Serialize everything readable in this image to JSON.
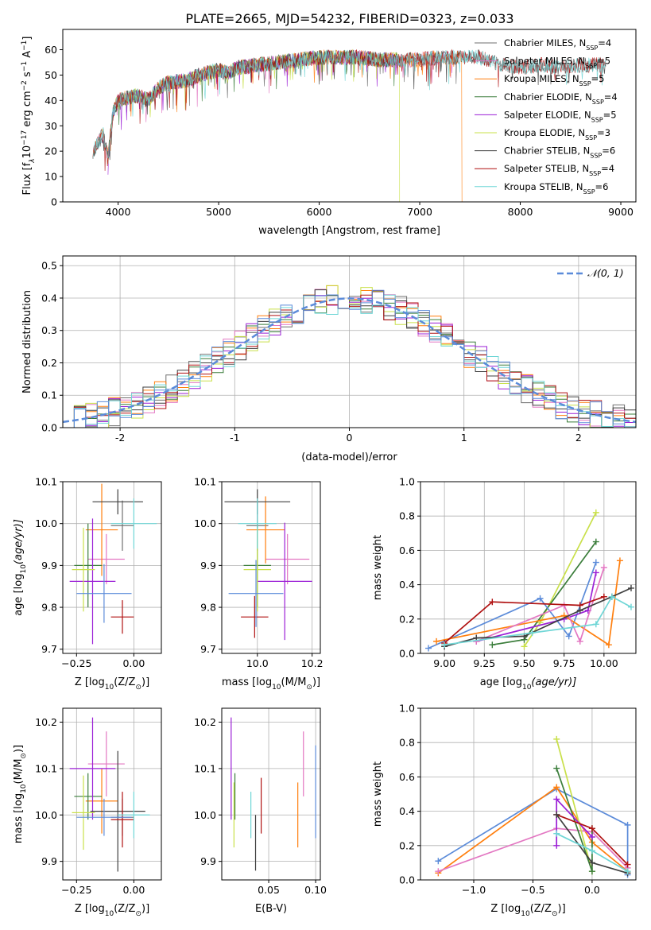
{
  "figure": {
    "title": "PLATE=2665, MJD=54232, FIBERID=0323, z=0.033"
  },
  "colors": {
    "Chabrier MILES": "#6f6f6f",
    "Salpeter MILES": "#e377c2",
    "Kroupa MILES": "#ff7f0e",
    "Chabrier ELODIE": "#3a7d3a",
    "Salpeter ELODIE": "#9b1fd6",
    "Kroupa ELODIE": "#c9e04a",
    "Chabrier STELIB": "#3f3f3f",
    "Salpeter STELIB": "#b01111",
    "Kroupa STELIB": "#6fd6d6",
    "blue_model": "#5b8bd9",
    "grid": "#b0b0b0"
  },
  "chart_data": [
    {
      "id": "spectrum",
      "type": "line",
      "xlabel": "wavelength [Angstrom, rest frame]",
      "ylabel_parts": [
        "Flux [f",
        "λ",
        "10",
        "−17",
        " erg cm",
        "−2",
        " s",
        "−1",
        " A",
        "−1",
        "]"
      ],
      "xlim": [
        3450,
        9150
      ],
      "ylim": [
        0,
        68
      ],
      "xticks": [
        4000,
        5000,
        6000,
        7000,
        8000,
        9000
      ],
      "yticks": [
        0,
        10,
        20,
        30,
        40,
        50,
        60
      ],
      "grid": false,
      "legend_position": "top-right",
      "legend": [
        {
          "label": "Chabrier MILES, N",
          "sub": "SSP",
          "tail": "=4"
        },
        {
          "label": "Salpeter MILES, N",
          "sub": "SSP",
          "tail": "=5"
        },
        {
          "label": "Kroupa MILES, N",
          "sub": "SSP",
          "tail": "=5"
        },
        {
          "label": "Chabrier ELODIE, N",
          "sub": "SSP",
          "tail": "=4"
        },
        {
          "label": "Salpeter ELODIE, N",
          "sub": "SSP",
          "tail": "=5"
        },
        {
          "label": "Kroupa ELODIE, N",
          "sub": "SSP",
          "tail": "=3"
        },
        {
          "label": "Chabrier STELIB, N",
          "sub": "SSP",
          "tail": "=6"
        },
        {
          "label": "Salpeter STELIB, N",
          "sub": "SSP",
          "tail": "=4"
        },
        {
          "label": "Kroupa STELIB, N",
          "sub": "SSP",
          "tail": "=6"
        }
      ],
      "continuum": [
        [
          3750,
          20
        ],
        [
          3800,
          23
        ],
        [
          3850,
          27
        ],
        [
          3900,
          18
        ],
        [
          3950,
          35
        ],
        [
          4000,
          40
        ],
        [
          4100,
          41
        ],
        [
          4200,
          42
        ],
        [
          4300,
          40
        ],
        [
          4400,
          45
        ],
        [
          4500,
          47
        ],
        [
          4700,
          48
        ],
        [
          4800,
          50
        ],
        [
          4900,
          51
        ],
        [
          5000,
          52
        ],
        [
          5100,
          51
        ],
        [
          5200,
          53
        ],
        [
          5400,
          54
        ],
        [
          5600,
          55
        ],
        [
          5800,
          56
        ],
        [
          6000,
          57
        ],
        [
          6200,
          57
        ],
        [
          6400,
          57
        ],
        [
          6600,
          56
        ],
        [
          6800,
          56
        ],
        [
          7000,
          56
        ],
        [
          7200,
          57
        ],
        [
          7400,
          57
        ],
        [
          7600,
          57
        ],
        [
          7800,
          54
        ],
        [
          8000,
          53
        ],
        [
          8200,
          54
        ],
        [
          8400,
          53
        ],
        [
          8600,
          54
        ],
        [
          8800,
          54
        ],
        [
          8850,
          53
        ]
      ],
      "model_ranges": [
        {
          "series": "Chabrier MILES",
          "x": [
            3750,
            7400
          ]
        },
        {
          "series": "Salpeter MILES",
          "x": [
            3750,
            7400
          ]
        },
        {
          "series": "Kroupa MILES",
          "x": [
            3750,
            7420
          ],
          "drop_at": 7420
        },
        {
          "series": "Chabrier ELODIE",
          "x": [
            3900,
            6800
          ]
        },
        {
          "series": "Salpeter ELODIE",
          "x": [
            3900,
            6800
          ]
        },
        {
          "series": "Kroupa ELODIE",
          "x": [
            3900,
            6800
          ],
          "drop_at": 6800
        },
        {
          "series": "Chabrier STELIB",
          "x": [
            3750,
            8850
          ]
        },
        {
          "series": "Salpeter STELIB",
          "x": [
            3750,
            8850
          ]
        },
        {
          "series": "Kroupa STELIB",
          "x": [
            3750,
            8850
          ]
        }
      ]
    },
    {
      "id": "residual_hist",
      "type": "line",
      "xlabel": "(data-model)/error",
      "ylabel": "Normed distribution",
      "xlim": [
        -2.5,
        2.5
      ],
      "ylim": [
        0,
        0.53
      ],
      "xticks": [
        -2,
        -1,
        0,
        1,
        2
      ],
      "yticks": [
        0.0,
        0.1,
        0.2,
        0.3,
        0.4,
        0.5
      ],
      "grid": true,
      "legend_position": "top-right",
      "legend_label": "𝒩(0, 1)",
      "bin_width": 0.1,
      "gaussian": {
        "mean": 0,
        "sigma": 1
      }
    },
    {
      "id": "age_vs_Z",
      "type": "scatter",
      "xlabel": "Z [log10(Z/Z⊙)]",
      "xlabel_parts": [
        "Z [log",
        "10",
        "(Z/Z",
        "⊙",
        ")]"
      ],
      "ylabel_parts": [
        "age  [log",
        "10",
        "(age/yr)]"
      ],
      "xlim": [
        -0.31,
        0.12
      ],
      "ylim": [
        9.69,
        10.1
      ],
      "xticks": [
        -0.25,
        0.0
      ],
      "xticklabels": [
        "−0.25",
        "0.00"
      ],
      "yticks": [
        9.7,
        9.8,
        9.9,
        10.0,
        10.1
      ],
      "grid": true,
      "points": [
        {
          "series": "Chabrier MILES",
          "x": -0.05,
          "y": 9.995,
          "xerr": 0.05,
          "yerr": 0.06
        },
        {
          "series": "Salpeter MILES",
          "x": -0.12,
          "y": 9.915,
          "xerr": 0.08,
          "yerr": 0.06
        },
        {
          "series": "Kroupa MILES",
          "x": -0.14,
          "y": 9.985,
          "xerr": 0.07,
          "yerr": 0.11
        },
        {
          "series": "Chabrier ELODIE",
          "x": -0.2,
          "y": 9.9,
          "xerr": 0.06,
          "yerr": 0.1
        },
        {
          "series": "Salpeter ELODIE",
          "x": -0.18,
          "y": 9.862,
          "xerr": 0.1,
          "yerr": 0.15
        },
        {
          "series": "Kroupa ELODIE",
          "x": -0.22,
          "y": 9.89,
          "xerr": 0.05,
          "yerr": 0.1
        },
        {
          "series": "Chabrier STELIB",
          "x": -0.07,
          "y": 10.052,
          "xerr": 0.11,
          "yerr": 0.03
        },
        {
          "series": "Salpeter STELIB",
          "x": -0.05,
          "y": 9.777,
          "xerr": 0.05,
          "yerr": 0.04
        },
        {
          "series": "Kroupa STELIB",
          "x": 0.0,
          "y": 10.0,
          "xerr": 0.1,
          "yerr": 0.06
        },
        {
          "series": "blue_model",
          "x": -0.13,
          "y": 9.833,
          "xerr": 0.12,
          "yerr": 0.07
        }
      ]
    },
    {
      "id": "age_vs_mass",
      "type": "scatter",
      "xlabel_parts": [
        "mass [log",
        "10",
        "(M/M",
        "⊙",
        ")]"
      ],
      "xlim": [
        9.87,
        10.23
      ],
      "ylim": [
        9.69,
        10.1
      ],
      "xticks": [
        10.0,
        10.2
      ],
      "xticklabels": [
        "10.0",
        "10.2"
      ],
      "yticks": [
        9.7,
        9.8,
        9.9,
        10.0,
        10.1
      ],
      "grid": true,
      "points": [
        {
          "series": "Chabrier MILES",
          "x": 10.0,
          "y": 9.995,
          "xerr": 0.04,
          "yerr": 0.06
        },
        {
          "series": "Salpeter MILES",
          "x": 10.11,
          "y": 9.915,
          "xerr": 0.08,
          "yerr": 0.06
        },
        {
          "series": "Kroupa MILES",
          "x": 10.03,
          "y": 9.985,
          "xerr": 0.07,
          "yerr": 0.08
        },
        {
          "series": "Chabrier ELODIE",
          "x": 10.0,
          "y": 9.9,
          "xerr": 0.05,
          "yerr": 0.1
        },
        {
          "series": "Salpeter ELODIE",
          "x": 10.1,
          "y": 9.862,
          "xerr": 0.1,
          "yerr": 0.14
        },
        {
          "series": "Kroupa ELODIE",
          "x": 10.0,
          "y": 9.89,
          "xerr": 0.05,
          "yerr": 0.1
        },
        {
          "series": "Chabrier STELIB",
          "x": 10.0,
          "y": 10.052,
          "xerr": 0.12,
          "yerr": 0.03
        },
        {
          "series": "Salpeter STELIB",
          "x": 9.99,
          "y": 9.777,
          "xerr": 0.05,
          "yerr": 0.05
        },
        {
          "series": "Kroupa STELIB",
          "x": 10.0,
          "y": 10.0,
          "xerr": 0.07,
          "yerr": 0.06
        },
        {
          "series": "blue_model",
          "x": 9.995,
          "y": 9.833,
          "xerr": 0.1,
          "yerr": 0.08
        }
      ]
    },
    {
      "id": "weight_vs_age",
      "type": "line",
      "xlabel_parts": [
        "age  [log",
        "10",
        "(age/yr)]"
      ],
      "ylabel": "mass weight",
      "xlim": [
        8.85,
        10.2
      ],
      "ylim": [
        0,
        1
      ],
      "xticks": [
        9.0,
        9.25,
        9.5,
        9.75,
        10.0
      ],
      "xticklabels": [
        "9.00",
        "9.25",
        "9.50",
        "9.75",
        "10.00"
      ],
      "yticks": [
        0.0,
        0.2,
        0.4,
        0.6,
        0.8,
        1.0
      ],
      "grid": true,
      "series": [
        {
          "name": "Kroupa ELODIE",
          "x": [
            9.5,
            9.6,
            9.95
          ],
          "y": [
            0.04,
            0.18,
            0.82
          ]
        },
        {
          "name": "Chabrier ELODIE",
          "x": [
            9.3,
            9.5,
            9.95
          ],
          "y": [
            0.05,
            0.08,
            0.65
          ]
        },
        {
          "name": "blue_model",
          "x": [
            8.9,
            9.6,
            9.78,
            9.95
          ],
          "y": [
            0.03,
            0.32,
            0.1,
            0.53
          ]
        },
        {
          "name": "Salpeter ELODIE",
          "x": [
            9.2,
            9.75,
            9.9,
            9.95
          ],
          "y": [
            0.07,
            0.2,
            0.25,
            0.47
          ]
        },
        {
          "name": "Kroupa MILES",
          "x": [
            8.95,
            9.75,
            10.03,
            10.1
          ],
          "y": [
            0.07,
            0.22,
            0.05,
            0.54
          ]
        },
        {
          "name": "Salpeter MILES",
          "x": [
            9.2,
            9.75,
            9.85,
            10.0
          ],
          "y": [
            0.07,
            0.28,
            0.07,
            0.5
          ]
        },
        {
          "name": "Salpeter STELIB",
          "x": [
            9.0,
            9.3,
            9.85,
            10.0
          ],
          "y": [
            0.06,
            0.3,
            0.28,
            0.33
          ]
        },
        {
          "name": "Chabrier STELIB",
          "x": [
            9.0,
            9.2,
            9.5,
            9.85,
            10.05,
            10.17
          ],
          "y": [
            0.04,
            0.09,
            0.1,
            0.25,
            0.33,
            0.38
          ]
        },
        {
          "name": "Kroupa STELIB",
          "x": [
            9.0,
            9.55,
            9.95,
            10.05,
            10.17
          ],
          "y": [
            0.05,
            0.12,
            0.17,
            0.33,
            0.27
          ]
        }
      ]
    },
    {
      "id": "mass_vs_Z",
      "type": "scatter",
      "xlabel_parts": [
        "Z [log",
        "10",
        "(Z/Z",
        "⊙",
        ")]"
      ],
      "ylabel_parts": [
        "mass [log",
        "10",
        "(M/M",
        "⊙",
        ")]"
      ],
      "xlim": [
        -0.31,
        0.12
      ],
      "ylim": [
        9.86,
        10.23
      ],
      "xticks": [
        -0.25,
        0.0
      ],
      "xticklabels": [
        "−0.25",
        "0.00"
      ],
      "yticks": [
        9.9,
        10.0,
        10.1,
        10.2
      ],
      "grid": true,
      "points": [
        {
          "series": "Chabrier MILES",
          "x": -0.05,
          "y": 9.995,
          "xerr": 0.05,
          "yerr": 0.04
        },
        {
          "series": "Salpeter MILES",
          "x": -0.12,
          "y": 10.11,
          "xerr": 0.08,
          "yerr": 0.07
        },
        {
          "series": "Kroupa MILES",
          "x": -0.14,
          "y": 10.03,
          "xerr": 0.07,
          "yerr": 0.07
        },
        {
          "series": "Chabrier ELODIE",
          "x": -0.2,
          "y": 10.04,
          "xerr": 0.06,
          "yerr": 0.05
        },
        {
          "series": "Salpeter ELODIE",
          "x": -0.18,
          "y": 10.1,
          "xerr": 0.1,
          "yerr": 0.11
        },
        {
          "series": "Kroupa ELODIE",
          "x": -0.22,
          "y": 10.005,
          "xerr": 0.05,
          "yerr": 0.08
        },
        {
          "series": "Chabrier STELIB",
          "x": -0.07,
          "y": 10.008,
          "xerr": 0.12,
          "yerr": 0.13
        },
        {
          "series": "Salpeter STELIB",
          "x": -0.05,
          "y": 9.99,
          "xerr": 0.05,
          "yerr": 0.06
        },
        {
          "series": "Kroupa STELIB",
          "x": 0.0,
          "y": 10.0,
          "xerr": 0.07,
          "yerr": 0.05
        },
        {
          "series": "blue_model",
          "x": -0.13,
          "y": 9.995,
          "xerr": 0.12,
          "yerr": 0.04
        }
      ]
    },
    {
      "id": "mass_vs_ebv",
      "type": "scatter",
      "xlabel": "E(B-V)",
      "xlim": [
        0.0,
        0.105
      ],
      "ylim": [
        9.86,
        10.23
      ],
      "xticks": [
        0.05,
        0.1
      ],
      "xticklabels": [
        "0.05",
        "0.10"
      ],
      "yticks": [
        9.9,
        10.0,
        10.1,
        10.2
      ],
      "grid": true,
      "points": [
        {
          "series": "Salpeter ELODIE",
          "x": 0.01,
          "y": 10.1,
          "yerr": 0.11
        },
        {
          "series": "Chabrier ELODIE",
          "x": 0.014,
          "y": 10.04,
          "yerr": 0.05
        },
        {
          "series": "Kroupa ELODIE",
          "x": 0.013,
          "y": 10.0,
          "yerr": 0.07
        },
        {
          "series": "Kroupa STELIB",
          "x": 0.031,
          "y": 10.0,
          "yerr": 0.05
        },
        {
          "series": "Chabrier STELIB",
          "x": 0.036,
          "y": 9.94,
          "yerr": 0.06
        },
        {
          "series": "Salpeter STELIB",
          "x": 0.042,
          "y": 10.02,
          "yerr": 0.06
        },
        {
          "series": "Kroupa MILES",
          "x": 0.081,
          "y": 10.0,
          "yerr": 0.07
        },
        {
          "series": "Salpeter MILES",
          "x": 0.087,
          "y": 10.11,
          "yerr": 0.07
        },
        {
          "series": "blue_model",
          "x": 0.1,
          "y": 10.05,
          "yerr": 0.1
        }
      ]
    },
    {
      "id": "weight_vs_Z",
      "type": "line",
      "xlabel_parts": [
        "Z [log",
        "10",
        "(Z/Z",
        "⊙",
        ")]"
      ],
      "ylabel": "mass weight",
      "xlim": [
        -1.45,
        0.37
      ],
      "ylim": [
        0,
        1
      ],
      "xticks": [
        -1.0,
        -0.5,
        0.0
      ],
      "xticklabels": [
        "−1.0",
        "−0.5",
        "0.0"
      ],
      "yticks": [
        0.0,
        0.2,
        0.4,
        0.6,
        0.8,
        1.0
      ],
      "grid": true,
      "series": [
        {
          "name": "blue_model",
          "x": [
            -1.3,
            -0.3,
            0.3,
            0.3
          ],
          "y": [
            0.11,
            0.53,
            0.32,
            0.03
          ]
        },
        {
          "name": "Kroupa MILES",
          "x": [
            -1.3,
            -0.3,
            0.0,
            0.3
          ],
          "y": [
            0.04,
            0.54,
            0.22,
            0.05
          ]
        },
        {
          "name": "Salpeter MILES",
          "x": [
            -1.3,
            -0.3,
            0.0,
            0.3
          ],
          "y": [
            0.05,
            0.3,
            0.28,
            0.07
          ]
        },
        {
          "name": "Kroupa ELODIE",
          "x": [
            -0.3,
            0.0
          ],
          "y": [
            0.82,
            0.05
          ]
        },
        {
          "name": "Chabrier ELODIE",
          "x": [
            -0.3,
            0.0,
            0.0
          ],
          "y": [
            0.65,
            0.05,
            0.3
          ]
        },
        {
          "name": "Salpeter ELODIE",
          "x": [
            -0.3,
            -0.3,
            0.0
          ],
          "y": [
            0.2,
            0.47,
            0.25
          ]
        },
        {
          "name": "Salpeter STELIB",
          "x": [
            -0.3,
            0.0,
            0.3
          ],
          "y": [
            0.38,
            0.3,
            0.09
          ]
        },
        {
          "name": "Chabrier STELIB",
          "x": [
            -0.3,
            0.0,
            0.3
          ],
          "y": [
            0.38,
            0.1,
            0.04
          ]
        },
        {
          "name": "Kroupa STELIB",
          "x": [
            -0.3,
            0.0,
            0.3
          ],
          "y": [
            0.27,
            0.17,
            0.05
          ]
        }
      ]
    }
  ]
}
